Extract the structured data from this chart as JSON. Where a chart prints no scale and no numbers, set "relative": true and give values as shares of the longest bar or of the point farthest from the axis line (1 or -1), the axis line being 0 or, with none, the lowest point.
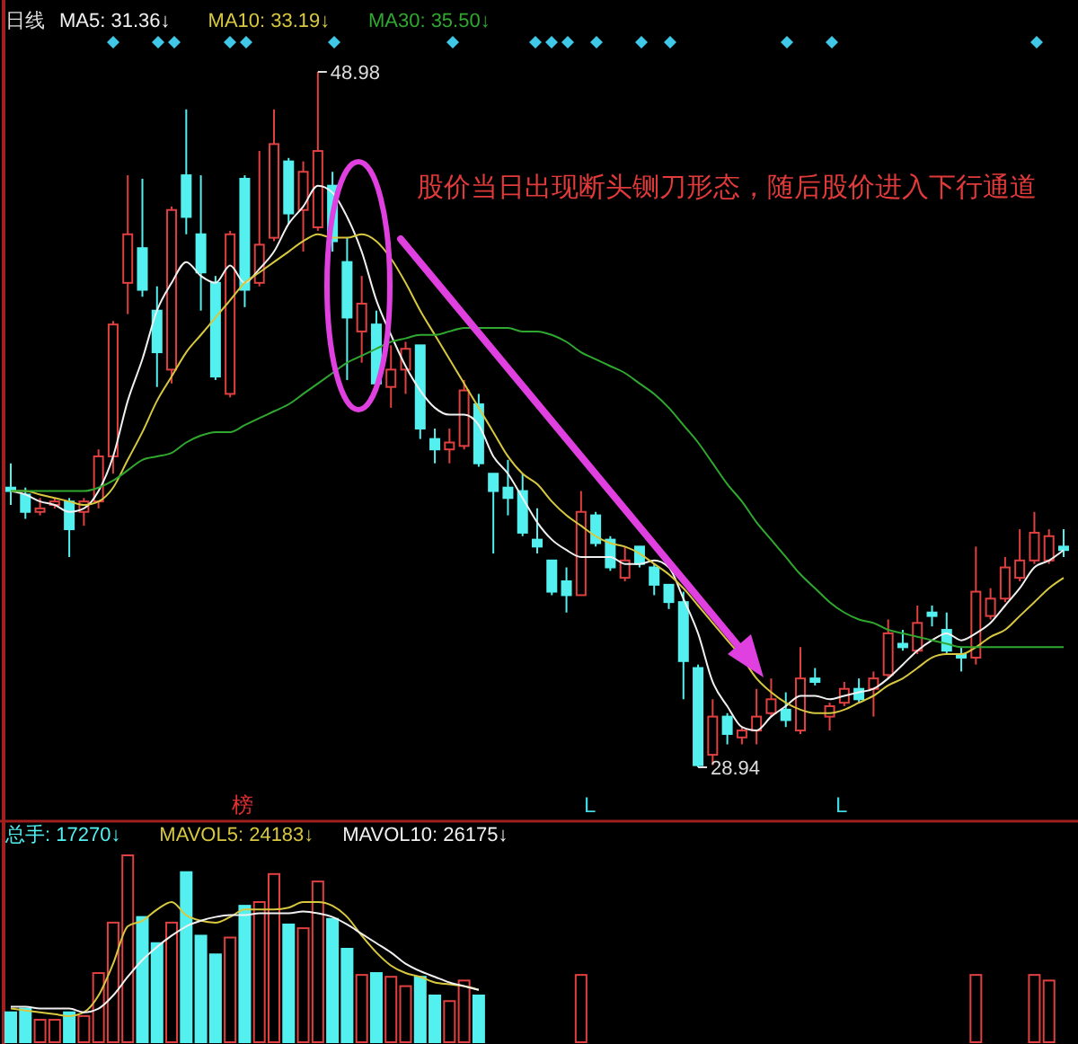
{
  "chart_data": [
    {
      "type": "candlestick",
      "title": "日线",
      "legend": "top left",
      "categories": [
        null,
        null,
        null,
        null,
        null,
        null,
        null,
        null,
        null,
        null,
        null,
        null,
        null,
        null,
        null,
        null,
        null,
        null,
        null,
        null,
        null,
        null,
        null,
        null,
        null,
        null,
        null,
        null,
        null,
        null,
        null,
        null,
        null,
        null,
        null,
        null,
        null,
        null,
        null,
        null,
        null,
        null,
        null,
        null,
        null,
        null,
        null,
        null,
        null,
        null,
        null,
        null,
        null,
        null,
        null,
        null,
        null,
        null,
        null,
        null,
        null,
        null,
        null,
        null,
        null,
        null,
        null,
        null,
        null,
        null,
        null,
        null,
        null
      ],
      "ohlc": [
        [
          37.0,
          37.7,
          36.5,
          36.9
        ],
        [
          36.8,
          37.0,
          36.1,
          36.3
        ],
        [
          36.3,
          36.7,
          36.2,
          36.4
        ],
        [
          36.5,
          36.7,
          36.4,
          36.6
        ],
        [
          36.6,
          36.7,
          35.0,
          35.8
        ],
        [
          36.3,
          36.7,
          35.9,
          36.6
        ],
        [
          36.6,
          38.1,
          36.4,
          37.9
        ],
        [
          37.9,
          41.8,
          37.4,
          41.7
        ],
        [
          42.9,
          46.0,
          42.0,
          44.3
        ],
        [
          43.9,
          45.9,
          42.5,
          42.7
        ],
        [
          42.1,
          42.8,
          39.9,
          40.9
        ],
        [
          40.4,
          45.1,
          40.0,
          45.0
        ],
        [
          46.0,
          47.9,
          44.3,
          44.8
        ],
        [
          44.3,
          46.0,
          42.1,
          43.2
        ],
        [
          42.9,
          43.1,
          40.1,
          40.2
        ],
        [
          39.7,
          44.4,
          39.6,
          44.3
        ],
        [
          45.9,
          46.0,
          42.2,
          42.7
        ],
        [
          42.9,
          46.7,
          42.8,
          44.0
        ],
        [
          44.2,
          47.9,
          44.1,
          46.9
        ],
        [
          46.4,
          46.5,
          44.6,
          44.9
        ],
        [
          45.0,
          46.4,
          43.8,
          46.1
        ],
        [
          44.5,
          48.98,
          44.4,
          46.7
        ],
        [
          45.7,
          46.1,
          43.8,
          44.1
        ],
        [
          43.5,
          44.2,
          40.1,
          41.9
        ],
        [
          41.5,
          43.1,
          40.6,
          42.3
        ],
        [
          41.7,
          42.1,
          39.9,
          40.0
        ],
        [
          39.9,
          41.1,
          39.3,
          40.4
        ],
        [
          40.4,
          41.2,
          39.7,
          41.0
        ],
        [
          41.1,
          41.1,
          38.4,
          38.7
        ],
        [
          38.4,
          38.7,
          37.7,
          38.1
        ],
        [
          38.1,
          38.7,
          37.7,
          38.3
        ],
        [
          38.2,
          40.1,
          38.1,
          39.8
        ],
        [
          39.4,
          39.7,
          37.6,
          37.7
        ],
        [
          37.4,
          37.4,
          35.1,
          36.9
        ],
        [
          37.0,
          37.8,
          36.2,
          36.7
        ],
        [
          36.9,
          37.4,
          35.6,
          35.7
        ],
        [
          35.5,
          36.4,
          35.1,
          35.3
        ],
        [
          34.9,
          34.9,
          33.9,
          34.0
        ],
        [
          34.3,
          34.7,
          33.4,
          33.9
        ],
        [
          33.9,
          36.9,
          33.9,
          36.3
        ],
        [
          36.2,
          36.3,
          35.3,
          35.4
        ],
        [
          35.5,
          35.6,
          34.6,
          34.7
        ],
        [
          34.4,
          35.3,
          34.3,
          34.9
        ],
        [
          35.3,
          35.3,
          34.7,
          34.8
        ],
        [
          34.7,
          34.8,
          33.9,
          34.2
        ],
        [
          34.2,
          34.2,
          33.5,
          33.7
        ],
        [
          33.7,
          34.0,
          30.9,
          32.0
        ],
        [
          31.8,
          31.9,
          28.94,
          29.0
        ],
        [
          29.3,
          30.9,
          29.0,
          30.4
        ],
        [
          30.4,
          30.5,
          29.6,
          29.9
        ],
        [
          29.8,
          30.1,
          29.6,
          30.0
        ],
        [
          30.0,
          31.2,
          29.6,
          30.4
        ],
        [
          30.5,
          31.5,
          30.4,
          30.9
        ],
        [
          30.6,
          31.1,
          30.1,
          30.3
        ],
        [
          30.0,
          32.4,
          29.9,
          31.5
        ],
        [
          31.5,
          31.8,
          31.3,
          31.4
        ],
        [
          30.4,
          30.8,
          30.0,
          30.7
        ],
        [
          30.8,
          31.4,
          30.7,
          31.2
        ],
        [
          31.2,
          31.5,
          30.8,
          30.9
        ],
        [
          31.2,
          31.7,
          30.4,
          31.5
        ],
        [
          31.6,
          33.2,
          31.5,
          32.8
        ],
        [
          32.5,
          32.9,
          32.3,
          32.4
        ],
        [
          32.3,
          33.6,
          32.2,
          33.1
        ],
        [
          33.4,
          33.6,
          33.0,
          33.3
        ],
        [
          32.9,
          33.4,
          32.2,
          32.3
        ],
        [
          32.2,
          32.4,
          31.7,
          32.1
        ],
        [
          32.1,
          35.3,
          31.9,
          34.0
        ],
        [
          33.3,
          34.1,
          33.2,
          33.8
        ],
        [
          33.8,
          35.0,
          33.7,
          34.7
        ],
        [
          34.4,
          35.8,
          34.3,
          34.9
        ],
        [
          34.9,
          36.3,
          34.8,
          35.7
        ],
        [
          34.9,
          35.8,
          34.8,
          35.6
        ],
        [
          35.3,
          35.8,
          35.0,
          35.2
        ]
      ],
      "colors": [
        "#54f0f0",
        "#54f0f0",
        "#e04040",
        "#e04040",
        "#54f0f0",
        "#e04040",
        "#e04040",
        "#e04040",
        "#e04040",
        "#54f0f0",
        "#54f0f0",
        "#e04040",
        "#54f0f0",
        "#54f0f0",
        "#54f0f0",
        "#e04040",
        "#54f0f0",
        "#e04040",
        "#e04040",
        "#54f0f0",
        "#e04040",
        "#e04040",
        "#54f0f0",
        "#54f0f0",
        "#e04040",
        "#54f0f0",
        "#e04040",
        "#e04040",
        "#54f0f0",
        "#54f0f0",
        "#e04040",
        "#e04040",
        "#54f0f0",
        "#54f0f0",
        "#54f0f0",
        "#54f0f0",
        "#54f0f0",
        "#54f0f0",
        "#54f0f0",
        "#e04040",
        "#54f0f0",
        "#54f0f0",
        "#e04040",
        "#54f0f0",
        "#54f0f0",
        "#54f0f0",
        "#54f0f0",
        "#54f0f0",
        "#e04040",
        "#54f0f0",
        "#e04040",
        "#e04040",
        "#e04040",
        "#54f0f0",
        "#e04040",
        "#54f0f0",
        "#e04040",
        "#e04040",
        "#54f0f0",
        "#e04040",
        "#e04040",
        "#54f0f0",
        "#e04040",
        "#54f0f0",
        "#54f0f0",
        "#54f0f0",
        "#e04040",
        "#e04040",
        "#e04040",
        "#e04040",
        "#e04040",
        "#e04040",
        "#54f0f0"
      ],
      "series": [
        {
          "type": "line",
          "name": "MA5: 31.36↓",
          "color": "#f0f0f0",
          "values": [
            36.9,
            36.8,
            36.6,
            36.5,
            36.3,
            36.4,
            36.9,
            37.9,
            39.5,
            40.7,
            42.1,
            42.9,
            43.5,
            43.1,
            42.9,
            43.4,
            42.9,
            43.3,
            43.8,
            44.6,
            45.1,
            45.7,
            45.5,
            44.8,
            43.8,
            42.4,
            41.4,
            40.5,
            39.8,
            39.3,
            39.1,
            39.1,
            38.8,
            37.9,
            37.4,
            36.7,
            36.0,
            35.5,
            35.2,
            35.0,
            35.0,
            35.0,
            34.8,
            34.8,
            34.9,
            34.7,
            33.8,
            32.8,
            31.4,
            30.7,
            30.1,
            30.0,
            30.4,
            30.7,
            31.0,
            31.0,
            30.9,
            31.0,
            31.1,
            31.2,
            31.5,
            31.9,
            32.3,
            32.6,
            32.8,
            32.6,
            32.8,
            33.1,
            33.6,
            34.1,
            34.7,
            34.9,
            35.2
          ]
        },
        {
          "type": "line",
          "name": "MA10: 33.19↓",
          "color": "#d8c840",
          "values": [
            36.9,
            36.9,
            36.8,
            36.7,
            36.6,
            36.5,
            36.6,
            37.0,
            37.8,
            38.6,
            39.5,
            40.2,
            40.9,
            41.4,
            41.9,
            42.4,
            42.9,
            43.2,
            43.5,
            43.8,
            44.1,
            44.3,
            44.2,
            44.2,
            44.3,
            44.1,
            43.6,
            42.9,
            42.1,
            41.4,
            40.7,
            40.0,
            39.3,
            38.6,
            37.9,
            37.4,
            37.1,
            36.6,
            36.2,
            35.9,
            35.6,
            35.4,
            35.3,
            35.1,
            34.8,
            34.5,
            34.1,
            33.6,
            33.1,
            32.6,
            32.1,
            31.5,
            31.1,
            30.8,
            30.6,
            30.5,
            30.5,
            30.6,
            30.8,
            31.0,
            31.3,
            31.5,
            31.8,
            32.1,
            32.2,
            32.2,
            32.4,
            32.7,
            32.9,
            33.3,
            33.7,
            34.1,
            34.4
          ]
        },
        {
          "type": "line",
          "name": "MA30: 35.50↓",
          "color": "#30a830",
          "values": [
            36.9,
            36.9,
            36.9,
            36.9,
            36.9,
            36.9,
            37.0,
            37.2,
            37.5,
            37.8,
            37.9,
            38.0,
            38.3,
            38.5,
            38.6,
            38.6,
            38.8,
            39.0,
            39.2,
            39.4,
            39.7,
            40.0,
            40.3,
            40.6,
            40.8,
            41.0,
            41.2,
            41.3,
            41.4,
            41.4,
            41.5,
            41.6,
            41.6,
            41.6,
            41.6,
            41.5,
            41.5,
            41.4,
            41.2,
            40.9,
            40.7,
            40.5,
            40.3,
            40.0,
            39.7,
            39.3,
            38.8,
            38.3,
            37.7,
            37.1,
            36.6,
            36.0,
            35.5,
            35.0,
            34.5,
            34.1,
            33.7,
            33.4,
            33.2,
            33.1,
            32.9,
            32.8,
            32.7,
            32.6,
            32.5,
            32.4,
            32.4,
            32.4,
            32.4,
            32.4,
            32.4,
            32.4,
            32.4
          ]
        }
      ],
      "annotations": [
        "48.98",
        "28.94",
        "股价当日出现断头铡刀形态，随后股价进入下行通道",
        "榜",
        "L",
        "L"
      ]
    },
    {
      "type": "bar",
      "relative": true,
      "legend": "top left",
      "categories": [
        null,
        null,
        null,
        null,
        null,
        null,
        null,
        null,
        null,
        null,
        null,
        null,
        null,
        null,
        null,
        null,
        null,
        null,
        null,
        null,
        null,
        null,
        null,
        null,
        null,
        null,
        null,
        null,
        null,
        null,
        null,
        null,
        null,
        null,
        null,
        null,
        null,
        null,
        null,
        null,
        null,
        null,
        null,
        null,
        null,
        null,
        null,
        null,
        null,
        null,
        null,
        null,
        null,
        null,
        null,
        null,
        null,
        null,
        null,
        null,
        null,
        null,
        null,
        null,
        null,
        null,
        null,
        null,
        null,
        null,
        null,
        null,
        null
      ],
      "series": [
        {
          "name": "总手: 17270↓",
          "colors": [
            "#54f0f0",
            "#54f0f0",
            "#e04040",
            "#e04040",
            "#54f0f0",
            "#e04040",
            "#e04040",
            "#e04040",
            "#e04040",
            "#54f0f0",
            "#54f0f0",
            "#e04040",
            "#54f0f0",
            "#54f0f0",
            "#54f0f0",
            "#e04040",
            "#54f0f0",
            "#e04040",
            "#e04040",
            "#54f0f0",
            "#e04040",
            "#e04040",
            "#54f0f0",
            "#54f0f0",
            "#e04040",
            "#54f0f0",
            "#e04040",
            "#e04040",
            "#54f0f0",
            "#54f0f0",
            "#e04040",
            "#e04040",
            "#54f0f0",
            null,
            null,
            null,
            null,
            null,
            null,
            "#e04040",
            null,
            null,
            null,
            null,
            null,
            null,
            null,
            null,
            null,
            null,
            null,
            null,
            null,
            null,
            null,
            null,
            null,
            null,
            null,
            null,
            null,
            null,
            null,
            null,
            null,
            null,
            "#e04040",
            null,
            null,
            null,
            "#e04040",
            "#e04040",
            null
          ],
          "values": [
            0.16,
            0.18,
            0.12,
            0.12,
            0.16,
            0.14,
            0.37,
            0.64,
            1,
            0.67,
            0.53,
            0.64,
            0.91,
            0.57,
            0.47,
            0.56,
            0.73,
            0.75,
            0.9,
            0.63,
            0.61,
            0.86,
            0.66,
            0.5,
            0.36,
            0.37,
            0.35,
            0.3,
            0.35,
            0.25,
            0.22,
            0.33,
            0.25,
            null,
            null,
            null,
            null,
            null,
            null,
            0.36,
            null,
            null,
            null,
            null,
            null,
            null,
            null,
            null,
            null,
            null,
            null,
            null,
            null,
            null,
            null,
            null,
            null,
            null,
            null,
            null,
            null,
            null,
            null,
            null,
            null,
            null,
            0.36,
            null,
            null,
            null,
            0.36,
            0.33,
            null
          ]
        },
        {
          "type": "line",
          "name": "MAVOL5: 24183↓",
          "color": "#d8c840",
          "values": [
            0.18,
            0.17,
            0.16,
            0.15,
            0.14,
            0.16,
            0.25,
            0.42,
            0.62,
            0.65,
            0.71,
            0.75,
            0.68,
            0.65,
            0.64,
            0.67,
            0.71,
            0.71,
            0.71,
            0.72,
            0.75,
            0.75,
            0.73,
            0.67,
            0.57,
            0.48,
            0.41,
            0.37,
            0.35,
            0.32,
            0.31,
            0.3,
            0.28,
            null,
            null,
            null,
            null,
            null,
            null,
            null,
            null,
            null,
            null,
            null,
            null,
            null,
            null,
            null,
            null,
            null,
            null,
            null,
            null,
            null,
            null,
            null,
            null,
            null,
            null,
            null,
            null,
            null,
            null,
            null,
            null,
            null,
            null,
            null,
            null,
            null,
            null,
            null,
            null
          ]
        },
        {
          "type": "line",
          "name": "MAVOL10: 26175↓",
          "color": "#f0f0f0",
          "values": [
            0.19,
            0.19,
            0.18,
            0.18,
            0.18,
            0.16,
            0.18,
            0.25,
            0.35,
            0.44,
            0.51,
            0.57,
            0.62,
            0.65,
            0.67,
            0.68,
            0.68,
            0.69,
            0.69,
            0.69,
            0.7,
            0.69,
            0.67,
            0.63,
            0.58,
            0.53,
            0.48,
            0.42,
            0.38,
            0.35,
            0.32,
            0.3,
            0.28,
            null,
            null,
            null,
            null,
            null,
            null,
            null,
            null,
            null,
            null,
            null,
            null,
            null,
            null,
            null,
            null,
            null,
            null,
            null,
            null,
            null,
            null,
            null,
            null,
            null,
            null,
            null,
            null,
            null,
            null,
            null,
            null,
            null,
            null,
            null,
            null,
            null,
            null,
            null,
            null
          ]
        }
      ]
    }
  ]
}
